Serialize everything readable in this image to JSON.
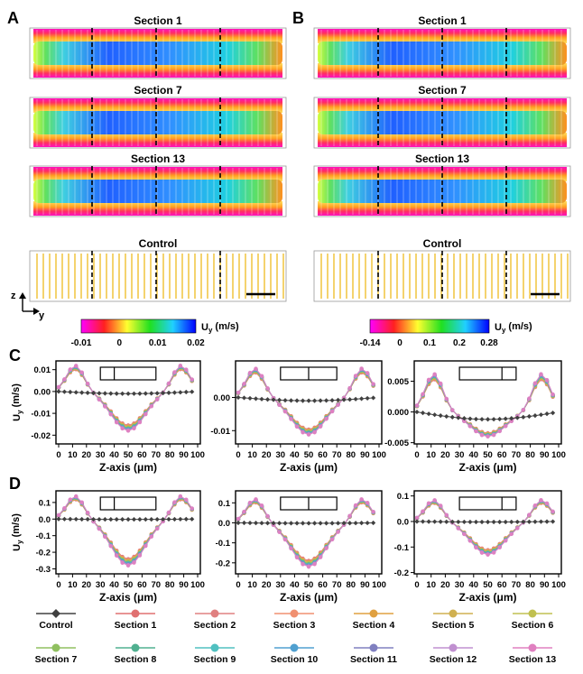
{
  "panel_letters": [
    "A",
    "B",
    "C",
    "D"
  ],
  "field_panels": {
    "A": {
      "titles": [
        "Section 1",
        "Section 7",
        "Section 13",
        "Control"
      ]
    },
    "B": {
      "titles": [
        "Section 1",
        "Section 7",
        "Section 13",
        "Control"
      ]
    }
  },
  "axis_indicator": {
    "vertical": "z",
    "horizontal": "y"
  },
  "colorbars": [
    {
      "label": "U_y (m/s)",
      "ticks": [
        "-0.01",
        "0",
        "0.01",
        "0.02"
      ],
      "colors": [
        "#ff00ff",
        "#ff2020",
        "#ffff30",
        "#20e020",
        "#20d0ff",
        "#0000ff"
      ]
    },
    {
      "label": "U_y (m/s)",
      "ticks": [
        "-0.14",
        "0",
        "0.1",
        "0.2",
        "0.28"
      ],
      "colors": [
        "#ff00ff",
        "#ff2020",
        "#ffff30",
        "#20e020",
        "#20d0ff",
        "#0000ff"
      ]
    }
  ],
  "legend": [
    {
      "name": "Control",
      "color": "#404040",
      "marker": "diamond"
    },
    {
      "name": "Section 1",
      "color": "#e07070",
      "marker": "circle"
    },
    {
      "name": "Section 2",
      "color": "#e08080",
      "marker": "circle"
    },
    {
      "name": "Section 3",
      "color": "#f09070",
      "marker": "circle"
    },
    {
      "name": "Section 4",
      "color": "#e0a040",
      "marker": "circle"
    },
    {
      "name": "Section 5",
      "color": "#d0b050",
      "marker": "circle"
    },
    {
      "name": "Section 6",
      "color": "#c0c050",
      "marker": "circle"
    },
    {
      "name": "Section 7",
      "color": "#90c060",
      "marker": "circle"
    },
    {
      "name": "Section 8",
      "color": "#50b090",
      "marker": "circle"
    },
    {
      "name": "Section 9",
      "color": "#50c0c0",
      "marker": "circle"
    },
    {
      "name": "Section 10",
      "color": "#50a0d0",
      "marker": "circle"
    },
    {
      "name": "Section 11",
      "color": "#8080c0",
      "marker": "circle"
    },
    {
      "name": "Section 12",
      "color": "#c090d0",
      "marker": "circle"
    },
    {
      "name": "Section 13",
      "color": "#e080c0",
      "marker": "circle"
    }
  ],
  "chart_data": [
    {
      "type": "line",
      "panel": "C",
      "xlabel": "Z-axis (μm)",
      "ylabel": "U_y (m/s)",
      "xlim": [
        0,
        100
      ],
      "ylim": [
        -0.024,
        0.014
      ],
      "xticks": [
        "0",
        "10",
        "20",
        "30",
        "40",
        "50",
        "60",
        "70",
        "80",
        "90",
        "100"
      ],
      "yticks": [
        0.01,
        0.0,
        -0.01,
        -0.02
      ],
      "ytick_labels": [
        "0.01",
        "0.00",
        "-0.01",
        "-0.02"
      ],
      "inset_divider": 40,
      "peak_max": 0.012,
      "trough_min": -0.018,
      "control_min": -0.001
    },
    {
      "type": "line",
      "panel": "C",
      "xlabel": "Z-axis (μm)",
      "ylabel": "",
      "xlim": [
        0,
        100
      ],
      "ylim": [
        -0.014,
        0.011
      ],
      "xticks": [
        "0",
        "10",
        "20",
        "30",
        "40",
        "50",
        "60",
        "70",
        "80",
        "90",
        "100"
      ],
      "yticks": [
        0.0,
        -0.01
      ],
      "ytick_labels": [
        "0.00",
        "-0.01"
      ],
      "inset_divider": 50,
      "peak_max": 0.0088,
      "trough_min": -0.0112,
      "control_min": -0.001
    },
    {
      "type": "line",
      "panel": "C",
      "xlabel": "Z-axis (μm)",
      "ylabel": "",
      "xlim": [
        0,
        100
      ],
      "ylim": [
        -0.0052,
        0.0083
      ],
      "xticks": [
        "0",
        "10",
        "20",
        "30",
        "40",
        "50",
        "60",
        "70",
        "80",
        "90",
        "100"
      ],
      "yticks": [
        0.005,
        0.0,
        -0.005
      ],
      "ytick_labels": [
        "0.005",
        "0.000",
        "-0.005"
      ],
      "inset_divider": 60,
      "peak_max": 0.0062,
      "trough_min": -0.004,
      "control_min": -0.0012
    },
    {
      "type": "line",
      "panel": "D",
      "xlabel": "Z-axis (μm)",
      "ylabel": "U_y (m/s)",
      "xlim": [
        0,
        100
      ],
      "ylim": [
        -0.33,
        0.17
      ],
      "xticks": [
        "0",
        "10",
        "20",
        "30",
        "40",
        "50",
        "60",
        "70",
        "80",
        "90",
        "100"
      ],
      "yticks": [
        0.1,
        0.0,
        -0.1,
        -0.2,
        -0.3
      ],
      "ytick_labels": [
        "0.1",
        "0.0",
        "-0.1",
        "-0.2",
        "-0.3"
      ],
      "inset_divider": 40,
      "peak_max": 0.14,
      "trough_min": -0.28,
      "control_min": -0.002
    },
    {
      "type": "line",
      "panel": "D",
      "xlabel": "Z-axis (μm)",
      "ylabel": "",
      "xlim": [
        0,
        100
      ],
      "ylim": [
        -0.255,
        0.16
      ],
      "xticks": [
        "0",
        "10",
        "20",
        "30",
        "40",
        "50",
        "60",
        "70",
        "80",
        "90",
        "100"
      ],
      "yticks": [
        0.1,
        0.0,
        -0.1,
        -0.2
      ],
      "ytick_labels": [
        "0.1",
        "0.0",
        "-0.1",
        "-0.2"
      ],
      "inset_divider": 50,
      "peak_max": 0.12,
      "trough_min": -0.22,
      "control_min": -0.002
    },
    {
      "type": "line",
      "panel": "D",
      "xlabel": "Z-axis (μm)",
      "ylabel": "",
      "xlim": [
        0,
        100
      ],
      "ylim": [
        -0.205,
        0.12
      ],
      "xticks": [
        "0",
        "10",
        "20",
        "30",
        "40",
        "50",
        "60",
        "70",
        "80",
        "90",
        "100"
      ],
      "yticks": [
        0.1,
        0.0,
        -0.1,
        -0.2
      ],
      "ytick_labels": [
        "0.1",
        "0.0",
        "-0.1",
        "-0.2"
      ],
      "inset_divider": 60,
      "peak_max": 0.085,
      "trough_min": -0.13,
      "control_min": -0.002
    }
  ]
}
